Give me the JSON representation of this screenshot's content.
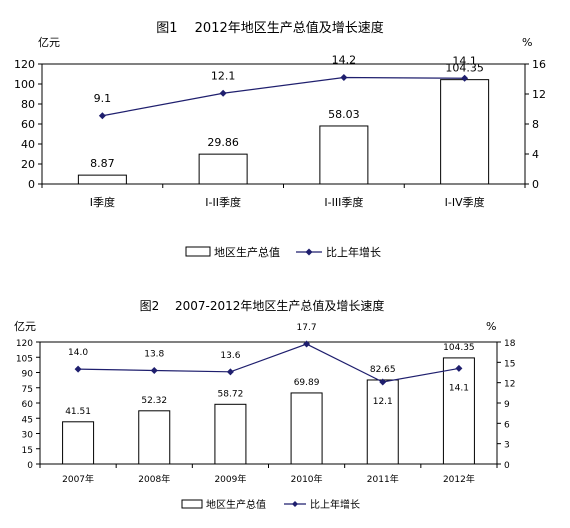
{
  "chart_data": [
    {
      "type": "bar",
      "title": "图1　 2012年地区生产总值及增长速度",
      "y_left_label": "亿元",
      "y_right_label": "%",
      "categories": [
        "I季度",
        "I-II季度",
        "I-III季度",
        "I-IV季度"
      ],
      "series": [
        {
          "name": "地区生产总值",
          "type": "bar",
          "axis": "left",
          "values": [
            8.87,
            29.86,
            58.03,
            104.35
          ],
          "labels": [
            "8.87",
            "29.86",
            "58.03",
            "104.35"
          ]
        },
        {
          "name": "比上年增长",
          "type": "line",
          "axis": "right",
          "values": [
            9.1,
            12.1,
            14.2,
            14.1
          ],
          "labels": [
            "9.1",
            "12.1",
            "14.2",
            "14.1"
          ]
        }
      ],
      "ylim_left": [
        0,
        120
      ],
      "yticks_left": [
        0,
        20,
        40,
        60,
        80,
        100,
        120
      ],
      "ylim_right": [
        0,
        16
      ],
      "yticks_right": [
        0,
        4,
        8,
        12,
        16
      ],
      "legend_position": "bottom",
      "colors": {
        "bar_fill": "#ffffff",
        "bar_stroke": "#000000",
        "line": "#1f1f6e"
      }
    },
    {
      "type": "bar",
      "title": "图2　 2007-2012年地区生产总值及增长速度",
      "y_left_label": "亿元",
      "y_right_label": "%",
      "categories": [
        "2007年",
        "2008年",
        "2009年",
        "2010年",
        "2011年",
        "2012年"
      ],
      "series": [
        {
          "name": "地区生产总值",
          "type": "bar",
          "axis": "left",
          "values": [
            41.51,
            52.32,
            58.72,
            69.89,
            82.65,
            104.35
          ],
          "labels": [
            "41.51",
            "52.32",
            "58.72",
            "69.89",
            "82.65",
            "104.35"
          ]
        },
        {
          "name": "比上年增长",
          "type": "line",
          "axis": "right",
          "values": [
            14.0,
            13.8,
            13.6,
            17.7,
            12.1,
            14.1
          ],
          "labels": [
            "14.0",
            "13.8",
            "13.6",
            "17.7",
            "12.1",
            "14.1"
          ]
        }
      ],
      "ylim_left": [
        0,
        120
      ],
      "yticks_left": [
        0,
        15,
        30,
        45,
        60,
        75,
        90,
        105,
        120
      ],
      "ylim_right": [
        0,
        18
      ],
      "yticks_right": [
        0,
        3,
        6,
        9,
        12,
        15,
        18
      ],
      "legend_position": "bottom",
      "colors": {
        "bar_fill": "#ffffff",
        "bar_stroke": "#000000",
        "line": "#1f1f6e"
      }
    }
  ]
}
